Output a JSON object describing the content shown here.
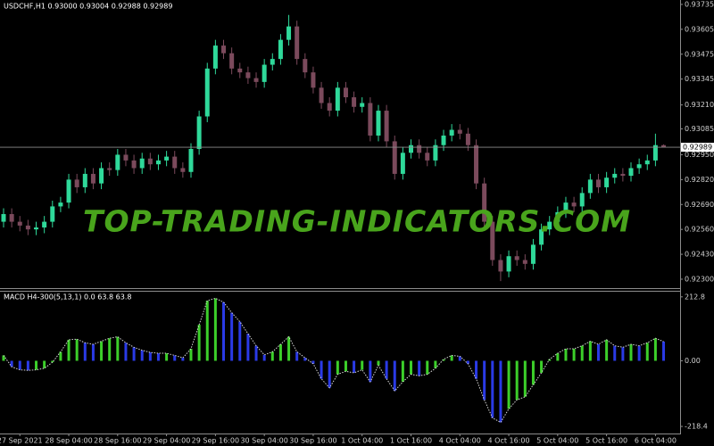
{
  "watermark": "TOP-TRADING-INDICATORS.COM",
  "chart_data": [
    {
      "type": "candlestick",
      "title": "USDCHF,H1 0.93000 0.93004 0.92988 0.92989",
      "up_color": "#2fd99a",
      "down_color": "#7b4a5c",
      "ylim": [
        0.92258,
        0.93758
      ],
      "yticks": [
        0.93735,
        0.93605,
        0.93475,
        0.93345,
        {
          "value": 0.9321,
          "label": "0.93210"
        },
        0.93085,
        {
          "value": 0.9295,
          "label": "0.92950"
        },
        {
          "value": 0.9282,
          "label": "0.92820"
        },
        {
          "value": 0.9269,
          "label": "0.92690"
        },
        {
          "value": 0.9256,
          "label": "0.92560"
        },
        {
          "value": 0.9243,
          "label": "0.92430"
        },
        {
          "value": 0.923,
          "label": "0.92300"
        }
      ],
      "open": [
        0.926,
        0.9264,
        0.926,
        0.9258,
        0.9256,
        0.9257,
        0.926,
        0.9268,
        0.927,
        0.9282,
        0.9278,
        0.9285,
        0.928,
        0.9288,
        0.9287,
        0.9295,
        0.9292,
        0.9288,
        0.9293,
        0.929,
        0.9292,
        0.9294,
        0.9288,
        0.9286,
        0.9298,
        0.9315,
        0.934,
        0.9352,
        0.9348,
        0.934,
        0.9338,
        0.9335,
        0.9333,
        0.9342,
        0.9345,
        0.9355,
        0.9362,
        0.9345,
        0.9338,
        0.933,
        0.9322,
        0.9318,
        0.933,
        0.9325,
        0.932,
        0.9322,
        0.9305,
        0.9318,
        0.9302,
        0.9285,
        0.9296,
        0.93,
        0.9296,
        0.9292,
        0.93,
        0.9305,
        0.9308,
        0.9306,
        0.93,
        0.928,
        0.926,
        0.924,
        0.9234,
        0.9242,
        0.924,
        0.9238,
        0.9248,
        0.9256,
        0.926,
        0.9265,
        0.927,
        0.9268,
        0.9275,
        0.9282,
        0.9278,
        0.9283,
        0.9285,
        0.9284,
        0.9288,
        0.929,
        0.9292,
        0.93
      ],
      "high": [
        0.9267,
        0.9267,
        0.9263,
        0.9261,
        0.926,
        0.9263,
        0.9271,
        0.9273,
        0.9285,
        0.9285,
        0.9288,
        0.9288,
        0.9291,
        0.9291,
        0.9298,
        0.9298,
        0.9295,
        0.9296,
        0.9296,
        0.9295,
        0.9297,
        0.9297,
        0.9291,
        0.9301,
        0.9318,
        0.9343,
        0.9355,
        0.9355,
        0.9351,
        0.9343,
        0.9341,
        0.9338,
        0.9345,
        0.9348,
        0.9358,
        0.9368,
        0.9365,
        0.9348,
        0.9341,
        0.9333,
        0.9325,
        0.9333,
        0.9333,
        0.9328,
        0.9325,
        0.9325,
        0.9321,
        0.9321,
        0.9305,
        0.9299,
        0.9303,
        0.9303,
        0.9299,
        0.9303,
        0.9308,
        0.9311,
        0.9311,
        0.9309,
        0.9303,
        0.9283,
        0.9263,
        0.9243,
        0.9245,
        0.9245,
        0.9243,
        0.9251,
        0.9259,
        0.9263,
        0.9268,
        0.9273,
        0.9273,
        0.9278,
        0.9285,
        0.9285,
        0.9286,
        0.9288,
        0.9288,
        0.9291,
        0.9293,
        0.9295,
        0.9306,
        0.93004
      ],
      "low": [
        0.9257,
        0.9257,
        0.9255,
        0.9253,
        0.9253,
        0.9254,
        0.9257,
        0.9265,
        0.9267,
        0.9275,
        0.9275,
        0.9277,
        0.9277,
        0.9284,
        0.9284,
        0.9289,
        0.9285,
        0.9285,
        0.9287,
        0.9287,
        0.9289,
        0.9285,
        0.9283,
        0.9283,
        0.9295,
        0.9312,
        0.9337,
        0.9345,
        0.9337,
        0.9335,
        0.9332,
        0.933,
        0.933,
        0.9339,
        0.9342,
        0.9352,
        0.9342,
        0.9335,
        0.9327,
        0.9319,
        0.9315,
        0.9315,
        0.9322,
        0.9317,
        0.9317,
        0.9302,
        0.9302,
        0.9299,
        0.9282,
        0.9282,
        0.9293,
        0.9293,
        0.9289,
        0.9289,
        0.9297,
        0.9302,
        0.9303,
        0.9297,
        0.9277,
        0.9257,
        0.9237,
        0.9229,
        0.9231,
        0.9237,
        0.9235,
        0.9235,
        0.9245,
        0.9253,
        0.9257,
        0.9262,
        0.9265,
        0.9265,
        0.9272,
        0.9275,
        0.9275,
        0.928,
        0.9281,
        0.9281,
        0.9285,
        0.9287,
        0.9289,
        0.92988
      ],
      "close": [
        0.9264,
        0.926,
        0.9258,
        0.9256,
        0.9257,
        0.926,
        0.9268,
        0.927,
        0.9282,
        0.9278,
        0.9285,
        0.928,
        0.9288,
        0.9287,
        0.9295,
        0.9292,
        0.9288,
        0.9293,
        0.929,
        0.9292,
        0.9294,
        0.9288,
        0.9286,
        0.9298,
        0.9315,
        0.934,
        0.9352,
        0.9348,
        0.934,
        0.9338,
        0.9335,
        0.9333,
        0.9342,
        0.9345,
        0.9355,
        0.9362,
        0.9345,
        0.9338,
        0.933,
        0.9322,
        0.9318,
        0.933,
        0.9325,
        0.932,
        0.9322,
        0.9305,
        0.9318,
        0.9302,
        0.9285,
        0.9296,
        0.93,
        0.9296,
        0.9292,
        0.93,
        0.9305,
        0.9308,
        0.9306,
        0.93,
        0.928,
        0.926,
        0.924,
        0.9234,
        0.9242,
        0.924,
        0.9238,
        0.9248,
        0.9256,
        0.926,
        0.9265,
        0.927,
        0.9268,
        0.9275,
        0.9282,
        0.9278,
        0.9283,
        0.9285,
        0.9284,
        0.9288,
        0.929,
        0.9292,
        0.93,
        0.92989
      ]
    },
    {
      "type": "macd",
      "title": "MACD H4-300(5,13,1) 0.0 63.8 63.8",
      "up_color": "#3ccf2a",
      "down_color": "#2a3ae6",
      "line_color": "#d8d8d8",
      "ylim": [
        -239,
        230
      ],
      "yticks": [
        212.8,
        {
          "value": 0,
          "label": "0.00"
        },
        -218.4
      ],
      "categories": [
        null,
        null,
        "27 Sep 2021",
        null,
        null,
        null,
        null,
        null,
        "28 Sep 04:00",
        null,
        null,
        null,
        null,
        null,
        "28 Sep 16:00",
        null,
        null,
        null,
        null,
        null,
        "29 Sep 04:00",
        null,
        null,
        null,
        null,
        null,
        "29 Sep 16:00",
        null,
        null,
        null,
        null,
        null,
        "30 Sep 04:00",
        null,
        null,
        null,
        null,
        null,
        "30 Sep 16:00",
        null,
        null,
        null,
        null,
        null,
        "1 Oct 04:00",
        null,
        null,
        null,
        null,
        null,
        "1 Oct 16:00",
        null,
        null,
        null,
        null,
        null,
        "4 Oct 04:00",
        null,
        null,
        null,
        null,
        null,
        "4 Oct 16:00",
        null,
        null,
        null,
        null,
        null,
        "5 Oct 04:00",
        null,
        null,
        null,
        null,
        null,
        "5 Oct 16:00",
        null,
        null,
        null,
        null,
        null,
        "6 Oct 04:00",
        null
      ],
      "values": [
        18,
        -20,
        -30,
        -32,
        -30,
        -25,
        -5,
        30,
        70,
        72,
        60,
        55,
        65,
        75,
        80,
        60,
        45,
        35,
        28,
        25,
        25,
        18,
        10,
        40,
        120,
        200,
        208,
        195,
        160,
        130,
        90,
        50,
        20,
        30,
        55,
        80,
        30,
        10,
        -10,
        -60,
        -90,
        -45,
        -35,
        -40,
        -30,
        -70,
        -15,
        -60,
        -100,
        -70,
        -45,
        -50,
        -45,
        -25,
        5,
        18,
        15,
        -10,
        -60,
        -130,
        -190,
        -205,
        -160,
        -130,
        -120,
        -80,
        -40,
        5,
        25,
        40,
        40,
        50,
        65,
        55,
        70,
        50,
        45,
        55,
        50,
        60,
        75,
        63.8
      ]
    }
  ]
}
